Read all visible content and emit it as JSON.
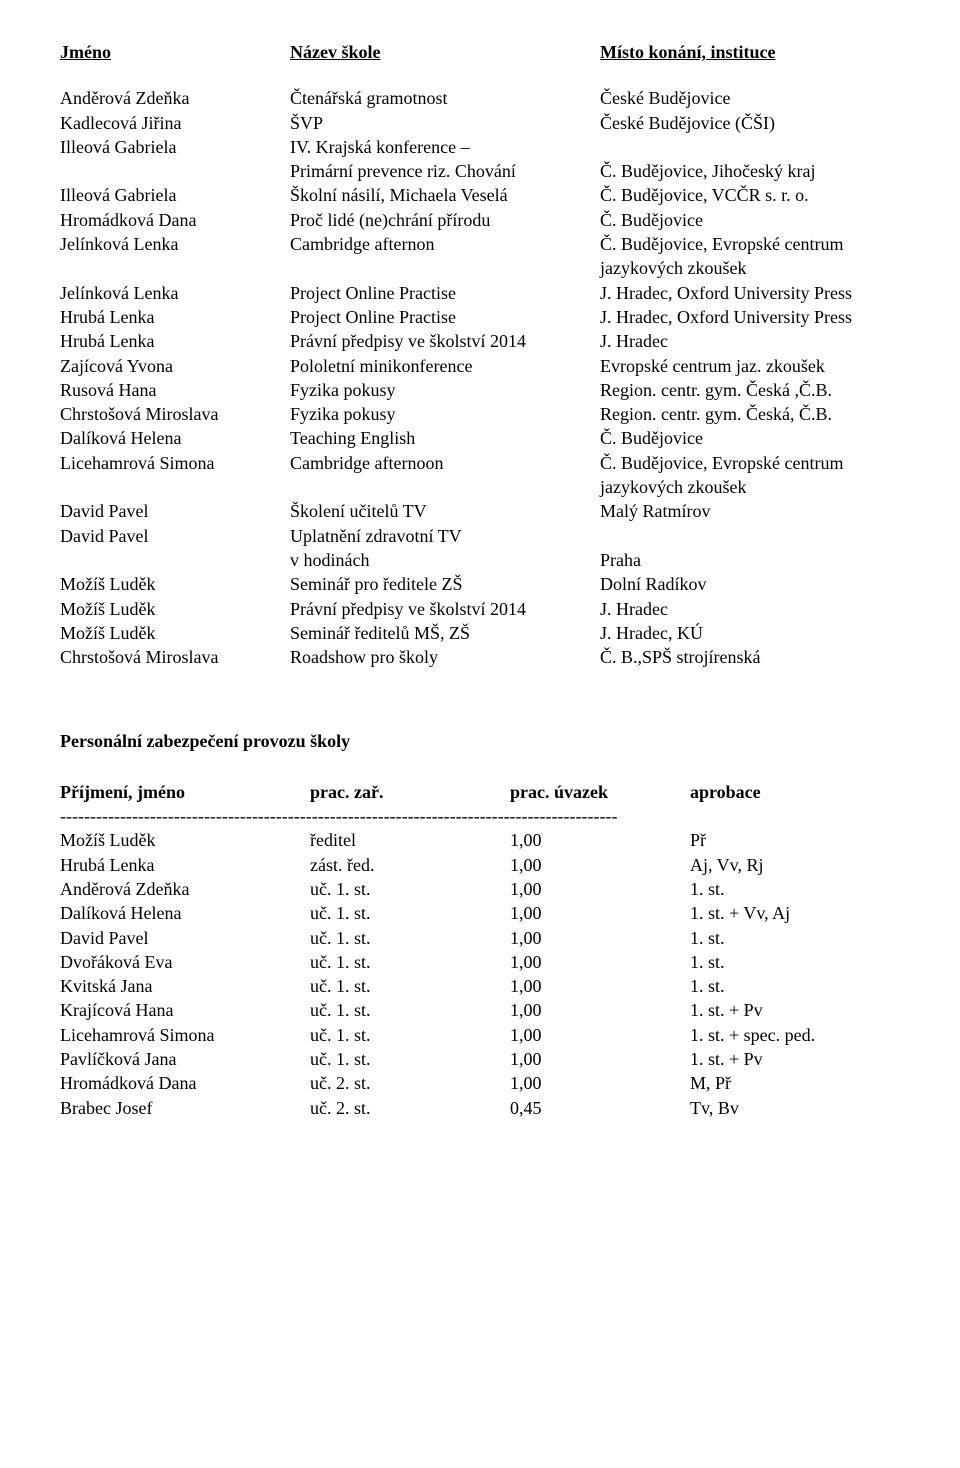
{
  "header": {
    "col1": "Jméno",
    "col2": "Název škole",
    "col3": "Místo konání, instituce"
  },
  "rows": [
    {
      "c1": "Anděrová Zdeňka",
      "c2": "Čtenářská gramotnost",
      "c3": "České Budějovice"
    },
    {
      "c1": "Kadlecová Jiřina",
      "c2": "ŠVP",
      "c3": "České Budějovice (ČŠI)"
    },
    {
      "c1": "Illeová Gabriela",
      "c2": "IV. Krajská konference –",
      "c3": ""
    },
    {
      "c1": "",
      "c2": "Primární prevence riz. Chování",
      "c3": "Č. Budějovice, Jihočeský kraj"
    },
    {
      "c1": "Illeová Gabriela",
      "c2": "Školní násilí, Michaela Veselá",
      "c3": "Č. Budějovice, VCČR s. r. o."
    },
    {
      "c1": "Hromádková Dana",
      "c2": "Proč lidé (ne)chrání přírodu",
      "c3": "Č. Budějovice"
    },
    {
      "c1": "Jelínková Lenka",
      "c2": "Cambridge afternon",
      "c3": "Č. Budějovice, Evropské centrum"
    },
    {
      "c1": "",
      "c2": "",
      "c3": "jazykových zkoušek"
    },
    {
      "c1": "Jelínková Lenka",
      "c2": "Project Online Practise",
      "c3": "J. Hradec, Oxford University Press"
    },
    {
      "c1": "Hrubá Lenka",
      "c2": "Project Online Practise",
      "c3": "J. Hradec, Oxford University Press"
    },
    {
      "c1": "Hrubá Lenka",
      "c2": "Právní předpisy ve školství 2014",
      "c3": "J. Hradec"
    },
    {
      "c1": "Zajícová Yvona",
      "c2": "Pololetní minikonference",
      "c3": "Evropské centrum jaz. zkoušek"
    },
    {
      "c1": "Rusová Hana",
      "c2": "Fyzika pokusy",
      "c3": "Region. centr. gym. Česká ,Č.B."
    },
    {
      "c1": "Chrstošová Miroslava",
      "c2": "Fyzika pokusy",
      "c3": "Region. centr. gym. Česká, Č.B."
    },
    {
      "c1": "Dalíková Helena",
      "c2": "Teaching English",
      "c3": "Č. Budějovice"
    },
    {
      "c1": "Licehamrová Simona",
      "c2": "Cambridge afternoon",
      "c3": "Č. Budějovice, Evropské centrum"
    },
    {
      "c1": "",
      "c2": "",
      "c3": "jazykových zkoušek"
    },
    {
      "c1": "David Pavel",
      "c2": "Školení učitelů TV",
      "c3": "Malý Ratmírov"
    },
    {
      "c1": "David Pavel",
      "c2": "Uplatnění zdravotní TV",
      "c3": ""
    },
    {
      "c1": "",
      "c2": "v hodinách",
      "c3": "Praha"
    },
    {
      "c1": "Možíš Luděk",
      "c2": "Seminář pro ředitele ZŠ",
      "c3": "Dolní Radíkov"
    },
    {
      "c1": "Možíš Luděk",
      "c2": "Právní předpisy ve školství 2014",
      "c3": "J. Hradec"
    },
    {
      "c1": "Možíš Luděk",
      "c2": "Seminář ředitelů MŠ, ZŠ",
      "c3": "J. Hradec, KÚ"
    },
    {
      "c1": "Chrstošová Miroslava",
      "c2": "Roadshow pro školy",
      "c3": "Č. B.,SPŠ strojírenská"
    }
  ],
  "section_heading": "Personální zabezpečení provozu školy",
  "staff_header": {
    "c1": "Příjmení, jméno",
    "c2": "prac. zař.",
    "c3": "prac. úvazek",
    "c4": "aprobace"
  },
  "dashes": "---------------------------------------------------------------------------------------------",
  "staff_rows": [
    {
      "c1": "Možíš Luděk",
      "c2": "ředitel",
      "c3": "1,00",
      "c4": " Př"
    },
    {
      "c1": "Hrubá Lenka",
      "c2": "zást. řed.",
      "c3": "1,00",
      "c4": "Aj, Vv, Rj"
    },
    {
      "c1": "Anděrová Zdeňka",
      "c2": "uč. 1. st.",
      "c3": "1,00",
      "c4": "1. st."
    },
    {
      "c1": "Dalíková Helena",
      "c2": "uč. 1. st.",
      "c3": "1,00",
      "c4": "1. st. + Vv, Aj"
    },
    {
      "c1": "David Pavel",
      "c2": "uč. 1. st.",
      "c3": "1,00",
      "c4": "1. st."
    },
    {
      "c1": "Dvořáková Eva",
      "c2": "uč. 1. st.",
      "c3": "1,00",
      "c4": "1. st."
    },
    {
      "c1": "Kvitská Jana",
      "c2": "uč. 1. st.",
      "c3": "1,00",
      "c4": "1. st."
    },
    {
      "c1": "Krajícová Hana",
      "c2": "uč. 1. st.",
      "c3": "1,00",
      "c4": "1. st. + Pv"
    },
    {
      "c1": "Licehamrová Simona",
      "c2": "uč. 1. st.",
      "c3": "   1,00",
      "c4": "   1. st. + spec. ped."
    },
    {
      "c1": "Pavlíčková Jana",
      "c2": "uč. 1. st.",
      "c3": "1,00",
      "c4": "1. st. + Pv"
    },
    {
      "c1": "Hromádková Dana",
      "c2": "uč. 2. st.",
      "c3": "1,00",
      "c4": "M, Př"
    },
    {
      "c1": "Brabec Josef",
      "c2": "uč. 2. st.",
      "c3": "0,45",
      "c4": "Tv, Bv"
    }
  ]
}
